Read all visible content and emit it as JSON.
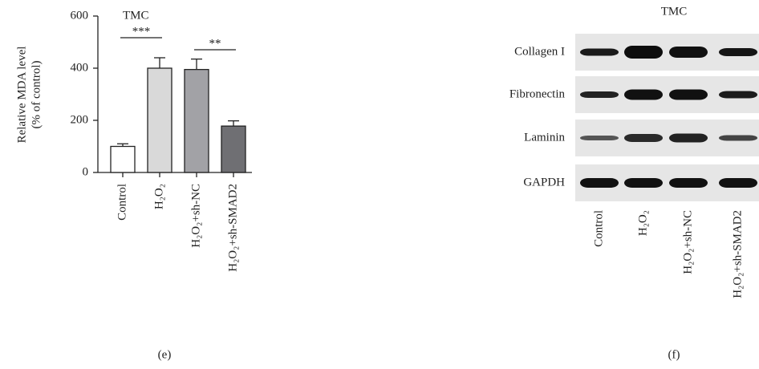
{
  "chart_data": {
    "type": "bar",
    "title": "TMC",
    "caption": "(e)",
    "ylabel": [
      "Relative MDA level",
      "(% of control)"
    ],
    "categories": [
      "Control",
      "H₂O₂",
      "H₂O₂+sh-NC",
      "H₂O₂+sh-SMAD2"
    ],
    "values": [
      100,
      400,
      395,
      178
    ],
    "errors": [
      10,
      40,
      40,
      20
    ],
    "colors": [
      "#ffffff",
      "#d9d9d9",
      "#a2a2a6",
      "#6f6f73"
    ],
    "ylim": [
      0,
      600
    ],
    "yticks": [
      0,
      200,
      400,
      600
    ],
    "annotations": [
      "***",
      "**"
    ]
  },
  "blot": {
    "title": "TMC",
    "caption": "(f)",
    "rows": [
      "Collagen I",
      "Fibronectin",
      "Laminin",
      "GAPDH"
    ],
    "lanes": [
      "Control",
      "H₂O₂",
      "H₂O₂+sh-NC",
      "H₂O₂+sh-SMAD2"
    ]
  }
}
